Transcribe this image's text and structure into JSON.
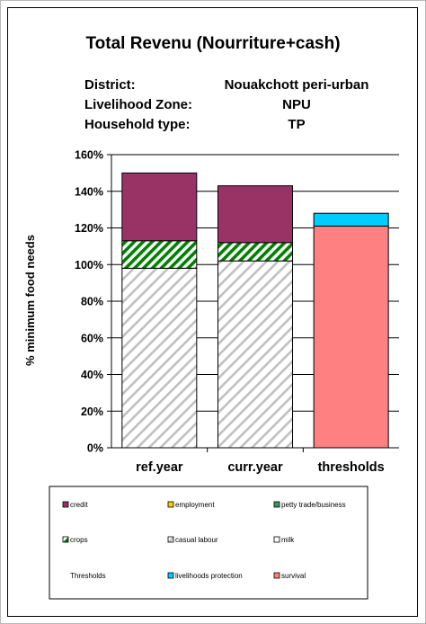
{
  "chart_data": {
    "type": "bar",
    "stacked": true,
    "title": "Total Revenu (Nourriture+cash)",
    "info": [
      {
        "label": "District:",
        "value": "Nouakchott peri-urban"
      },
      {
        "label": "Livelihood Zone:",
        "value": "NPU"
      },
      {
        "label": "Household type:",
        "value": "TP"
      }
    ],
    "ylabel": "% minimum food needs",
    "ylim": [
      0,
      160
    ],
    "yticks": [
      0,
      20,
      40,
      60,
      80,
      100,
      120,
      140,
      160
    ],
    "ytick_labels": [
      "0%",
      "20%",
      "40%",
      "60%",
      "80%",
      "100%",
      "120%",
      "140%",
      "160%"
    ],
    "gridlines": true,
    "categories": [
      "ref.year",
      "curr.year",
      "thresholds"
    ],
    "series": [
      {
        "name": "casual labour",
        "pattern": "diagonal-gray",
        "values": [
          98,
          102,
          0
        ]
      },
      {
        "name": "crops",
        "pattern": "diagonal-green",
        "values": [
          15,
          10,
          0
        ]
      },
      {
        "name": "credit",
        "color": "#993366",
        "values": [
          37,
          31,
          0
        ]
      },
      {
        "name": "survival",
        "color": "#ff8080",
        "values": [
          0,
          0,
          121
        ]
      },
      {
        "name": "livelihoods protection",
        "color": "#00ccff",
        "values": [
          0,
          0,
          7
        ]
      }
    ],
    "legend": {
      "position": "bottom",
      "items": [
        {
          "name": "credit",
          "color": "#993366",
          "swatch": "solid"
        },
        {
          "name": "employment",
          "color": "#ffcc00",
          "swatch": "solid"
        },
        {
          "name": "petty trade/business",
          "color": "#339966",
          "swatch": "solid"
        },
        {
          "name": "crops",
          "color": "#008000",
          "swatch": "diagonal-green"
        },
        {
          "name": "casual labour",
          "color": "#c0c0c0",
          "swatch": "diagonal-gray"
        },
        {
          "name": "milk",
          "color": "#ffffff",
          "swatch": "solid"
        },
        {
          "name": "Thresholds",
          "color": "",
          "swatch": "none"
        },
        {
          "name": "livelihoods protection",
          "color": "#00ccff",
          "swatch": "solid"
        },
        {
          "name": "survival",
          "color": "#ff8080",
          "swatch": "solid"
        }
      ]
    }
  }
}
